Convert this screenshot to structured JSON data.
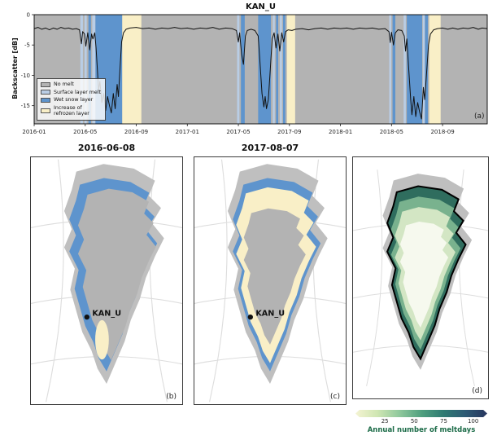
{
  "colors": {
    "no_melt": "#b3b3b3",
    "surface_melt": "#b9cde5",
    "wet_snow": "#5e94cd",
    "refrozen": "#f9efc7",
    "line": "#111111",
    "coast_gray": "#bfbfbf",
    "meltdays_margin": "#2f6d5e",
    "meltdays_mid": "#79b28e",
    "meltdays_light": "#d3e6c4",
    "meltdays_center": "#f6f9ee",
    "meltdays_label": "#1b6b47"
  },
  "panel_a": {
    "title": "KAN_U",
    "ylabel": "Backscatter [dB]",
    "corner_label": "(a)",
    "legend": {
      "position": "lower left",
      "items": [
        {
          "label": "No melt",
          "color_key": "no_melt"
        },
        {
          "label": "Surface layer melt",
          "color_key": "surface_melt"
        },
        {
          "label": "Wet snow layer",
          "color_key": "wet_snow"
        },
        {
          "label": "Increase of\nrefrozen layer",
          "color_key": "refrozen"
        }
      ]
    }
  },
  "chart_data": {
    "type": "line",
    "title": "KAN_U",
    "xlabel": "",
    "ylabel": "Backscatter [dB]",
    "x_unit": "months since 2016-01",
    "xlim": [
      0,
      35.5
    ],
    "ylim": [
      -18,
      0
    ],
    "yticks": [
      0,
      -5,
      -10,
      -15
    ],
    "xticks": [
      {
        "m": 0,
        "label": "2016-01"
      },
      {
        "m": 4,
        "label": "2016-05"
      },
      {
        "m": 8,
        "label": "2016-09"
      },
      {
        "m": 12,
        "label": "2017-01"
      },
      {
        "m": 16,
        "label": "2017-05"
      },
      {
        "m": 20,
        "label": "2017-09"
      },
      {
        "m": 24,
        "label": "2018-01"
      },
      {
        "m": 28,
        "label": "2018-05"
      },
      {
        "m": 32,
        "label": "2018-09"
      }
    ],
    "grid": false,
    "legend_position": "lower left",
    "bands": [
      {
        "from": 3.62,
        "to": 3.82,
        "type": "surface_melt"
      },
      {
        "from": 3.95,
        "to": 4.12,
        "type": "surface_melt"
      },
      {
        "from": 4.25,
        "to": 4.45,
        "type": "wet_snow"
      },
      {
        "from": 4.55,
        "to": 4.8,
        "type": "surface_melt"
      },
      {
        "from": 4.8,
        "to": 6.9,
        "type": "wet_snow"
      },
      {
        "from": 6.9,
        "to": 8.4,
        "type": "refrozen"
      },
      {
        "from": 15.9,
        "to": 16.08,
        "type": "surface_melt"
      },
      {
        "from": 16.2,
        "to": 16.5,
        "type": "wet_snow"
      },
      {
        "from": 17.55,
        "to": 18.55,
        "type": "wet_snow"
      },
      {
        "from": 18.7,
        "to": 18.85,
        "type": "surface_melt"
      },
      {
        "from": 18.95,
        "to": 19.12,
        "type": "wet_snow"
      },
      {
        "from": 19.25,
        "to": 19.42,
        "type": "surface_melt"
      },
      {
        "from": 19.5,
        "to": 19.68,
        "type": "wet_snow"
      },
      {
        "from": 19.8,
        "to": 20.45,
        "type": "refrozen"
      },
      {
        "from": 27.82,
        "to": 27.98,
        "type": "surface_melt"
      },
      {
        "from": 28.08,
        "to": 28.3,
        "type": "wet_snow"
      },
      {
        "from": 28.95,
        "to": 29.12,
        "type": "surface_melt"
      },
      {
        "from": 29.2,
        "to": 30.4,
        "type": "wet_snow"
      },
      {
        "from": 30.45,
        "to": 30.6,
        "type": "surface_melt"
      },
      {
        "from": 30.62,
        "to": 30.85,
        "type": "wet_snow"
      },
      {
        "from": 30.95,
        "to": 31.85,
        "type": "refrozen"
      }
    ],
    "series": [
      {
        "name": "backscatter_dB",
        "points": [
          [
            0,
            -2.3
          ],
          [
            0.3,
            -2.1
          ],
          [
            0.6,
            -2.4
          ],
          [
            0.9,
            -2.2
          ],
          [
            1.2,
            -2.5
          ],
          [
            1.5,
            -2.2
          ],
          [
            1.8,
            -2.4
          ],
          [
            2.1,
            -2.1
          ],
          [
            2.4,
            -2.3
          ],
          [
            2.7,
            -2.2
          ],
          [
            3.0,
            -2.4
          ],
          [
            3.3,
            -2.3
          ],
          [
            3.55,
            -2.5
          ],
          [
            3.7,
            -4.8
          ],
          [
            3.8,
            -2.8
          ],
          [
            3.95,
            -3.2
          ],
          [
            4.05,
            -5.2
          ],
          [
            4.2,
            -3.0
          ],
          [
            4.35,
            -5.8
          ],
          [
            4.5,
            -3.2
          ],
          [
            4.6,
            -4.0
          ],
          [
            4.75,
            -3.0
          ],
          [
            4.85,
            -5.5
          ],
          [
            4.95,
            -9.0
          ],
          [
            5.05,
            -12.5
          ],
          [
            5.15,
            -11.0
          ],
          [
            5.3,
            -14.5
          ],
          [
            5.45,
            -13.0
          ],
          [
            5.6,
            -15.8
          ],
          [
            5.75,
            -13.5
          ],
          [
            5.9,
            -15.0
          ],
          [
            6.05,
            -16.2
          ],
          [
            6.2,
            -13.0
          ],
          [
            6.35,
            -15.5
          ],
          [
            6.5,
            -11.5
          ],
          [
            6.6,
            -13.5
          ],
          [
            6.75,
            -8.0
          ],
          [
            6.85,
            -4.5
          ],
          [
            7.0,
            -3.0
          ],
          [
            7.2,
            -2.4
          ],
          [
            7.5,
            -2.2
          ],
          [
            8.0,
            -2.1
          ],
          [
            8.5,
            -2.3
          ],
          [
            9.0,
            -2.2
          ],
          [
            9.5,
            -2.4
          ],
          [
            10.0,
            -2.2
          ],
          [
            10.5,
            -2.3
          ],
          [
            11.0,
            -2.1
          ],
          [
            11.5,
            -2.3
          ],
          [
            12.0,
            -2.2
          ],
          [
            12.5,
            -2.4
          ],
          [
            13.0,
            -2.2
          ],
          [
            13.5,
            -2.3
          ],
          [
            14.0,
            -2.1
          ],
          [
            14.5,
            -2.4
          ],
          [
            15.0,
            -2.2
          ],
          [
            15.5,
            -2.3
          ],
          [
            15.85,
            -2.6
          ],
          [
            16.0,
            -4.5
          ],
          [
            16.1,
            -3.0
          ],
          [
            16.25,
            -6.5
          ],
          [
            16.4,
            -8.2
          ],
          [
            16.55,
            -3.5
          ],
          [
            16.7,
            -2.6
          ],
          [
            17.0,
            -2.4
          ],
          [
            17.3,
            -2.6
          ],
          [
            17.55,
            -3.5
          ],
          [
            17.7,
            -8.0
          ],
          [
            17.85,
            -13.0
          ],
          [
            18.0,
            -15.2
          ],
          [
            18.1,
            -13.5
          ],
          [
            18.2,
            -15.5
          ],
          [
            18.35,
            -14.0
          ],
          [
            18.5,
            -9.0
          ],
          [
            18.65,
            -4.0
          ],
          [
            18.8,
            -3.0
          ],
          [
            18.95,
            -5.5
          ],
          [
            19.1,
            -3.2
          ],
          [
            19.25,
            -6.0
          ],
          [
            19.4,
            -3.0
          ],
          [
            19.55,
            -4.5
          ],
          [
            19.7,
            -2.8
          ],
          [
            19.9,
            -2.5
          ],
          [
            20.2,
            -2.6
          ],
          [
            20.5,
            -2.4
          ],
          [
            21.0,
            -2.3
          ],
          [
            21.5,
            -2.5
          ],
          [
            22.0,
            -2.3
          ],
          [
            22.5,
            -2.2
          ],
          [
            23.0,
            -2.4
          ],
          [
            23.5,
            -2.2
          ],
          [
            24.0,
            -2.3
          ],
          [
            24.5,
            -2.2
          ],
          [
            25.0,
            -2.4
          ],
          [
            25.5,
            -2.2
          ],
          [
            26.0,
            -2.3
          ],
          [
            26.5,
            -2.2
          ],
          [
            27.0,
            -2.4
          ],
          [
            27.5,
            -2.3
          ],
          [
            27.8,
            -2.8
          ],
          [
            27.9,
            -4.6
          ],
          [
            28.0,
            -2.9
          ],
          [
            28.15,
            -5.0
          ],
          [
            28.3,
            -3.0
          ],
          [
            28.5,
            -2.5
          ],
          [
            28.8,
            -2.6
          ],
          [
            29.0,
            -3.5
          ],
          [
            29.1,
            -6.0
          ],
          [
            29.2,
            -4.0
          ],
          [
            29.35,
            -9.0
          ],
          [
            29.5,
            -14.0
          ],
          [
            29.6,
            -16.5
          ],
          [
            29.75,
            -13.5
          ],
          [
            29.9,
            -16.8
          ],
          [
            30.05,
            -14.5
          ],
          [
            30.2,
            -16.0
          ],
          [
            30.35,
            -17.2
          ],
          [
            30.5,
            -12.0
          ],
          [
            30.6,
            -14.0
          ],
          [
            30.75,
            -9.5
          ],
          [
            30.9,
            -5.0
          ],
          [
            31.05,
            -3.2
          ],
          [
            31.3,
            -2.5
          ],
          [
            31.6,
            -2.3
          ],
          [
            32.0,
            -2.2
          ],
          [
            32.4,
            -2.4
          ],
          [
            32.8,
            -2.2
          ],
          [
            33.2,
            -2.4
          ],
          [
            33.6,
            -2.2
          ],
          [
            34.0,
            -2.3
          ],
          [
            34.4,
            -2.1
          ],
          [
            34.8,
            -2.4
          ],
          [
            35.1,
            -2.2
          ],
          [
            35.5,
            -2.3
          ]
        ]
      }
    ]
  },
  "panel_b": {
    "title": "2016-06-08",
    "corner_label": "(b)",
    "station_label": "KAN_U"
  },
  "panel_c": {
    "title": "2017-08-07",
    "corner_label": "(c)",
    "station_label": "KAN_U"
  },
  "panel_d": {
    "corner_label": "(d)",
    "colorbar": {
      "label": "Annual number of meltdays",
      "ticks": [
        25,
        50,
        75,
        100
      ],
      "domain": [
        0,
        112
      ],
      "stops": [
        "#f4f3d2",
        "#cfe6b2",
        "#8fc89c",
        "#50a07f",
        "#2f7a72",
        "#2d5a74",
        "#27355e"
      ]
    }
  }
}
